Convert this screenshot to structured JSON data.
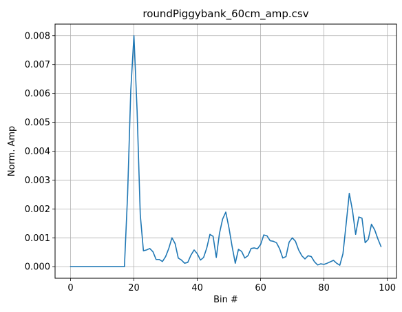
{
  "chart_data": {
    "type": "line",
    "title": "roundPiggybank_60cm_amp.csv",
    "xlabel": "Bin #",
    "ylabel": "Norm. Amp",
    "xlim": [
      -4.9,
      102.9
    ],
    "ylim": [
      -0.0004,
      0.0084
    ],
    "xticks": [
      0,
      20,
      40,
      60,
      80,
      100
    ],
    "xtick_labels": [
      "0",
      "20",
      "40",
      "60",
      "80",
      "100"
    ],
    "yticks": [
      0.0,
      0.001,
      0.002,
      0.003,
      0.004,
      0.005,
      0.006,
      0.007,
      0.008
    ],
    "ytick_labels": [
      "0.000",
      "0.001",
      "0.002",
      "0.003",
      "0.004",
      "0.005",
      "0.006",
      "0.007",
      "0.008"
    ],
    "grid": true,
    "color": "#1f77b4",
    "series": [
      {
        "x": [
          0,
          1,
          2,
          3,
          4,
          5,
          6,
          7,
          8,
          9,
          10,
          11,
          12,
          13,
          14,
          15,
          16,
          17,
          18,
          19,
          20,
          21,
          22,
          23,
          24,
          25,
          26,
          27,
          28,
          29,
          30,
          31,
          32,
          33,
          34,
          35,
          36,
          37,
          38,
          39,
          40,
          41,
          42,
          43,
          44,
          45,
          46,
          47,
          48,
          49,
          50,
          51,
          52,
          53,
          54,
          55,
          56,
          57,
          58,
          59,
          60,
          61,
          62,
          63,
          64,
          65,
          66,
          67,
          68,
          69,
          70,
          71,
          72,
          73,
          74,
          75,
          76,
          77,
          78,
          79,
          80,
          81,
          82,
          83,
          84,
          85,
          86,
          87,
          88,
          89,
          90,
          91,
          92,
          93,
          94,
          95,
          96,
          97,
          98
        ],
        "values": [
          0,
          0,
          0,
          0,
          0,
          0,
          0,
          0,
          0,
          0,
          0,
          0,
          0,
          0,
          0,
          0,
          0,
          0,
          0.0025,
          0.0061,
          0.008,
          0.0054,
          0.0018,
          0.00055,
          0.00058,
          0.00063,
          0.00052,
          0.00025,
          0.00025,
          0.00018,
          0.00035,
          0.00063,
          0.001,
          0.0008,
          0.0003,
          0.00023,
          0.00012,
          0.00015,
          0.0004,
          0.00058,
          0.00045,
          0.00023,
          0.00032,
          0.00065,
          0.00112,
          0.00105,
          0.00032,
          0.00115,
          0.00165,
          0.00189,
          0.00135,
          0.0007,
          0.00012,
          0.0006,
          0.00053,
          0.0003,
          0.00038,
          0.00063,
          0.00065,
          0.00062,
          0.00077,
          0.0011,
          0.00107,
          0.0009,
          0.00088,
          0.00083,
          0.00062,
          0.0003,
          0.00035,
          0.00085,
          0.001,
          0.00088,
          0.00058,
          0.00038,
          0.00027,
          0.00038,
          0.00035,
          0.00017,
          6e-05,
          0.0001,
          8e-05,
          0.00012,
          0.00017,
          0.00022,
          0.00012,
          5e-05,
          0.00045,
          0.00148,
          0.00254,
          0.00195,
          0.00112,
          0.00172,
          0.00168,
          0.00083,
          0.00095,
          0.00147,
          0.00128,
          0.00097,
          0.0007
        ]
      }
    ]
  }
}
